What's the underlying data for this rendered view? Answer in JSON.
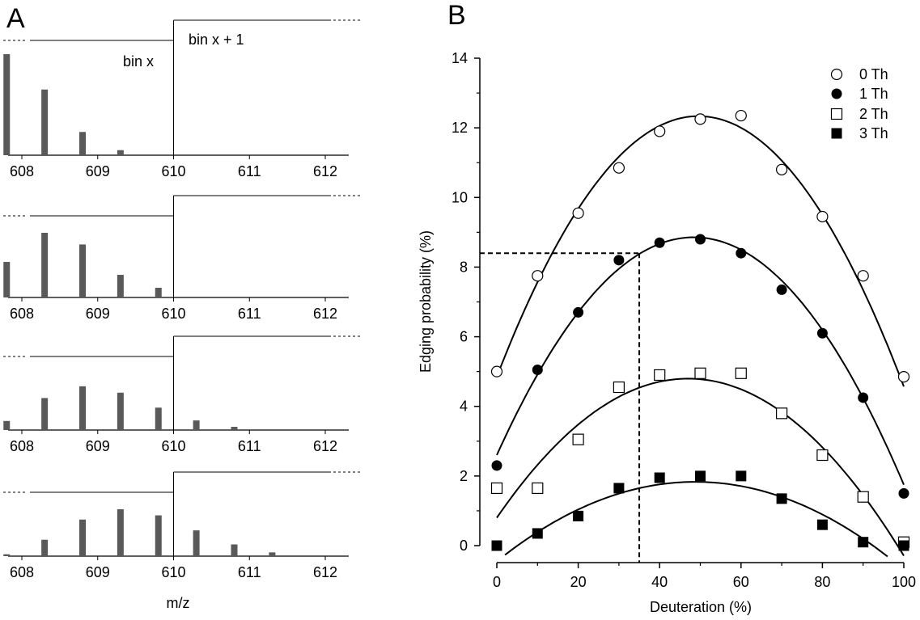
{
  "panels": {
    "a_label": "A",
    "b_label": "B"
  },
  "panel_a": {
    "bin_left_label": "bin x",
    "bin_right_label": "bin x + 1",
    "xlabel": "m/z",
    "ticks": [
      "608",
      "609",
      "610",
      "611",
      "612"
    ]
  },
  "panel_b": {
    "xlabel": "Deuteration (%)",
    "ylabel": "Edging probability (%)"
  },
  "chart_data": [
    {
      "type": "bar",
      "panel": "A",
      "xlabel": "m/z",
      "x_range": [
        607.7,
        612.5
      ],
      "x_ticks": [
        608,
        609,
        610,
        611,
        612
      ],
      "bin_boundary": 610,
      "subplots": [
        {
          "x": [
            607.8,
            608.3,
            608.8,
            609.3
          ],
          "values": [
            1.0,
            0.65,
            0.23,
            0.05
          ]
        },
        {
          "x": [
            607.8,
            608.3,
            608.8,
            609.3,
            609.8
          ],
          "values": [
            0.55,
            1.0,
            0.82,
            0.35,
            0.15
          ]
        },
        {
          "x": [
            607.8,
            608.3,
            608.8,
            609.3,
            609.8,
            610.3,
            610.8
          ],
          "values": [
            0.17,
            0.6,
            0.82,
            0.7,
            0.42,
            0.18,
            0.06
          ]
        },
        {
          "x": [
            607.8,
            608.3,
            608.8,
            609.3,
            609.8,
            610.3,
            610.8,
            611.3
          ],
          "values": [
            0.04,
            0.35,
            0.78,
            1.0,
            0.87,
            0.55,
            0.25,
            0.08
          ]
        }
      ]
    },
    {
      "type": "scatter",
      "panel": "B",
      "xlabel": "Deuteration (%)",
      "ylabel": "Edging probability (%)",
      "xlim": [
        0,
        100
      ],
      "ylim": [
        0,
        14
      ],
      "x_ticks": [
        0,
        20,
        40,
        60,
        80,
        100
      ],
      "y_ticks": [
        0,
        2,
        4,
        6,
        8,
        10,
        12,
        14
      ],
      "legend_position": "top-right",
      "x": [
        0,
        10,
        20,
        30,
        40,
        50,
        60,
        70,
        80,
        90,
        100
      ],
      "series": [
        {
          "name": "0 Th",
          "marker": "open-circle",
          "values": [
            5.0,
            7.75,
            9.55,
            10.85,
            11.9,
            12.25,
            12.35,
            10.8,
            9.45,
            7.75,
            4.85
          ],
          "fit": [
            -0.00305,
            0.3022,
            4.85
          ]
        },
        {
          "name": "1 Th",
          "marker": "filled-circle",
          "values": [
            2.3,
            5.05,
            6.7,
            8.2,
            8.7,
            8.8,
            8.4,
            7.35,
            6.1,
            4.25,
            1.5
          ],
          "fit": [
            -0.00267,
            0.2585,
            2.6
          ]
        },
        {
          "name": "2 Th",
          "marker": "open-square",
          "values": [
            1.65,
            1.65,
            3.05,
            4.55,
            4.9,
            4.95,
            4.95,
            3.8,
            2.6,
            1.4,
            0.1
          ],
          "fit": [
            -0.00181,
            0.1701,
            0.8
          ]
        },
        {
          "name": "3 Th",
          "marker": "filled-square",
          "values": [
            0.0,
            0.35,
            0.85,
            1.65,
            1.95,
            2.0,
            2.0,
            1.35,
            0.6,
            0.1,
            0.0
          ],
          "fit": [
            -0.00096,
            0.0936,
            -0.45
          ],
          "fit_range": [
            2,
            96
          ]
        }
      ],
      "reference_lines": {
        "x": 35,
        "y": 8.4
      }
    }
  ]
}
